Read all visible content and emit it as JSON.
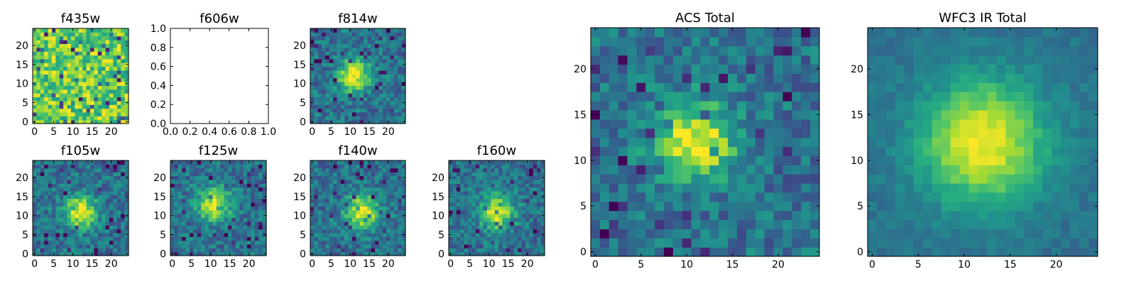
{
  "chart_data": [
    {
      "id": "f435w",
      "type": "heatmap",
      "title": "f435w",
      "colormap": "viridis",
      "grid_size": [
        25,
        25
      ],
      "xticks": [
        "0",
        "5",
        "10",
        "15",
        "20"
      ],
      "yticks": [
        "0",
        "5",
        "10",
        "15",
        "20"
      ],
      "description": "noisy, mostly green-yellow, no clear source"
    },
    {
      "id": "f606w",
      "type": "empty",
      "title": "f606w",
      "xticks": [
        "0.0",
        "0.2",
        "0.4",
        "0.6",
        "0.8",
        "1.0"
      ],
      "yticks": [
        "0.0",
        "0.2",
        "0.4",
        "0.6",
        "0.8",
        "1.0"
      ],
      "xlim": [
        0,
        1
      ],
      "ylim": [
        0,
        1
      ]
    },
    {
      "id": "f814w",
      "type": "heatmap",
      "title": "f814w",
      "colormap": "viridis",
      "grid_size": [
        25,
        25
      ],
      "xticks": [
        "0",
        "5",
        "10",
        "15",
        "20"
      ],
      "yticks": [
        "0",
        "5",
        "10",
        "15",
        "20"
      ],
      "peak_center": [
        11,
        12
      ]
    },
    {
      "id": "f105w",
      "type": "heatmap",
      "title": "f105w",
      "colormap": "viridis",
      "grid_size": [
        25,
        25
      ],
      "xticks": [
        "0",
        "5",
        "10",
        "15",
        "20"
      ],
      "yticks": [
        "0",
        "5",
        "10",
        "15",
        "20"
      ],
      "peak_center": [
        12,
        11
      ]
    },
    {
      "id": "f125w",
      "type": "heatmap",
      "title": "f125w",
      "colormap": "viridis",
      "grid_size": [
        25,
        25
      ],
      "xticks": [
        "0",
        "5",
        "10",
        "15",
        "20"
      ],
      "yticks": [
        "0",
        "5",
        "10",
        "15",
        "20"
      ],
      "peak_center": [
        11,
        13
      ]
    },
    {
      "id": "f140w",
      "type": "heatmap",
      "title": "f140w",
      "colormap": "viridis",
      "grid_size": [
        25,
        25
      ],
      "xticks": [
        "0",
        "5",
        "10",
        "15",
        "20"
      ],
      "yticks": [
        "0",
        "5",
        "10",
        "15",
        "20"
      ],
      "peak_center": [
        13,
        11
      ]
    },
    {
      "id": "f160w",
      "type": "heatmap",
      "title": "f160w",
      "colormap": "viridis",
      "grid_size": [
        25,
        25
      ],
      "xticks": [
        "0",
        "5",
        "10",
        "15",
        "20"
      ],
      "yticks": [
        "0",
        "5",
        "10",
        "15",
        "20"
      ],
      "peak_center": [
        12,
        11
      ]
    },
    {
      "id": "acs_total",
      "type": "heatmap",
      "title": "ACS Total",
      "colormap": "viridis",
      "grid_size": [
        25,
        25
      ],
      "xticks": [
        "0",
        "5",
        "10",
        "15",
        "20"
      ],
      "yticks": [
        "0",
        "5",
        "10",
        "15",
        "20"
      ],
      "peak_center": [
        11,
        12
      ]
    },
    {
      "id": "wfc3_ir_total",
      "type": "heatmap",
      "title": "WFC3 IR Total",
      "colormap": "viridis",
      "grid_size": [
        25,
        25
      ],
      "xticks": [
        "0",
        "5",
        "10",
        "15",
        "20"
      ],
      "yticks": [
        "0",
        "5",
        "10",
        "15",
        "20"
      ],
      "peak_center": [
        12,
        12
      ]
    }
  ]
}
